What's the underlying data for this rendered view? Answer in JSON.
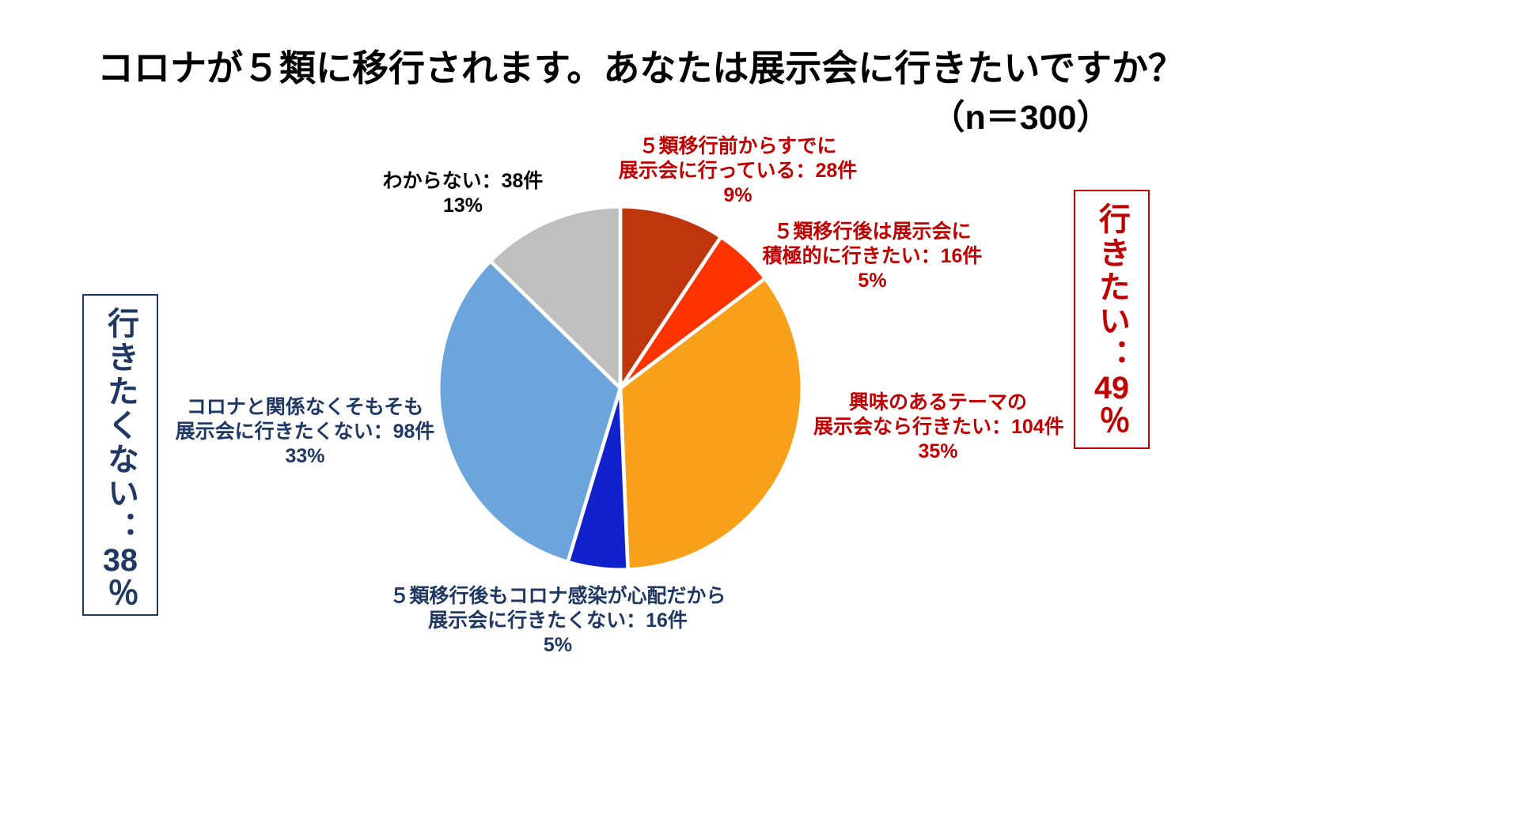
{
  "title": "コロナが５類に移行されます。あなたは展示会に行きたいですか？",
  "sample_size": "（n＝300）",
  "summary_right": {
    "prefix": "行きたい：",
    "value": "49",
    "suffix": "％",
    "color": "#C00000"
  },
  "summary_left": {
    "prefix": "行きたくない：",
    "value": "38",
    "suffix": "％",
    "color": "#1F3864"
  },
  "chart_data": {
    "type": "pie",
    "title": "コロナが５類に移行されます。あなたは展示会に行きたいですか？",
    "sample_size_label": "（n＝300）",
    "total": 300,
    "start_angle_deg": 0,
    "direction": "clockwise",
    "legend": "none",
    "slices": [
      {
        "name": "already-going",
        "count": 28,
        "percent": "9%",
        "color": "#BF360C",
        "lines": [
          "５類移行前からすでに",
          "展示会に行っている：28件",
          "9%"
        ]
      },
      {
        "name": "want-actively",
        "count": 16,
        "percent": "5%",
        "color": "#FF3300",
        "lines": [
          "５類移行後は展示会に",
          "積極的に行きたい：16件",
          "5%"
        ]
      },
      {
        "name": "if-interesting-theme",
        "count": 104,
        "percent": "35%",
        "color": "#F9A01B",
        "lines": [
          "興味のあるテーマの",
          "展示会なら行きたい：104件",
          "35%"
        ]
      },
      {
        "name": "worried-about-infection",
        "count": 16,
        "percent": "5%",
        "color": "#1122CC",
        "lines": [
          "５類移行後もコロナ感染が心配だから",
          "展示会に行きたくない：16件",
          "5%"
        ]
      },
      {
        "name": "never-want-regardless",
        "count": 98,
        "percent": "33%",
        "color": "#6CA5DC",
        "lines": [
          "コロナと関係なくそもそも",
          "展示会に行きたくない：98件",
          "33%"
        ]
      },
      {
        "name": "dont-know",
        "count": 38,
        "percent": "13%",
        "color": "#BFBFBF",
        "lines": [
          "わからない：38件",
          "13%"
        ]
      }
    ]
  }
}
